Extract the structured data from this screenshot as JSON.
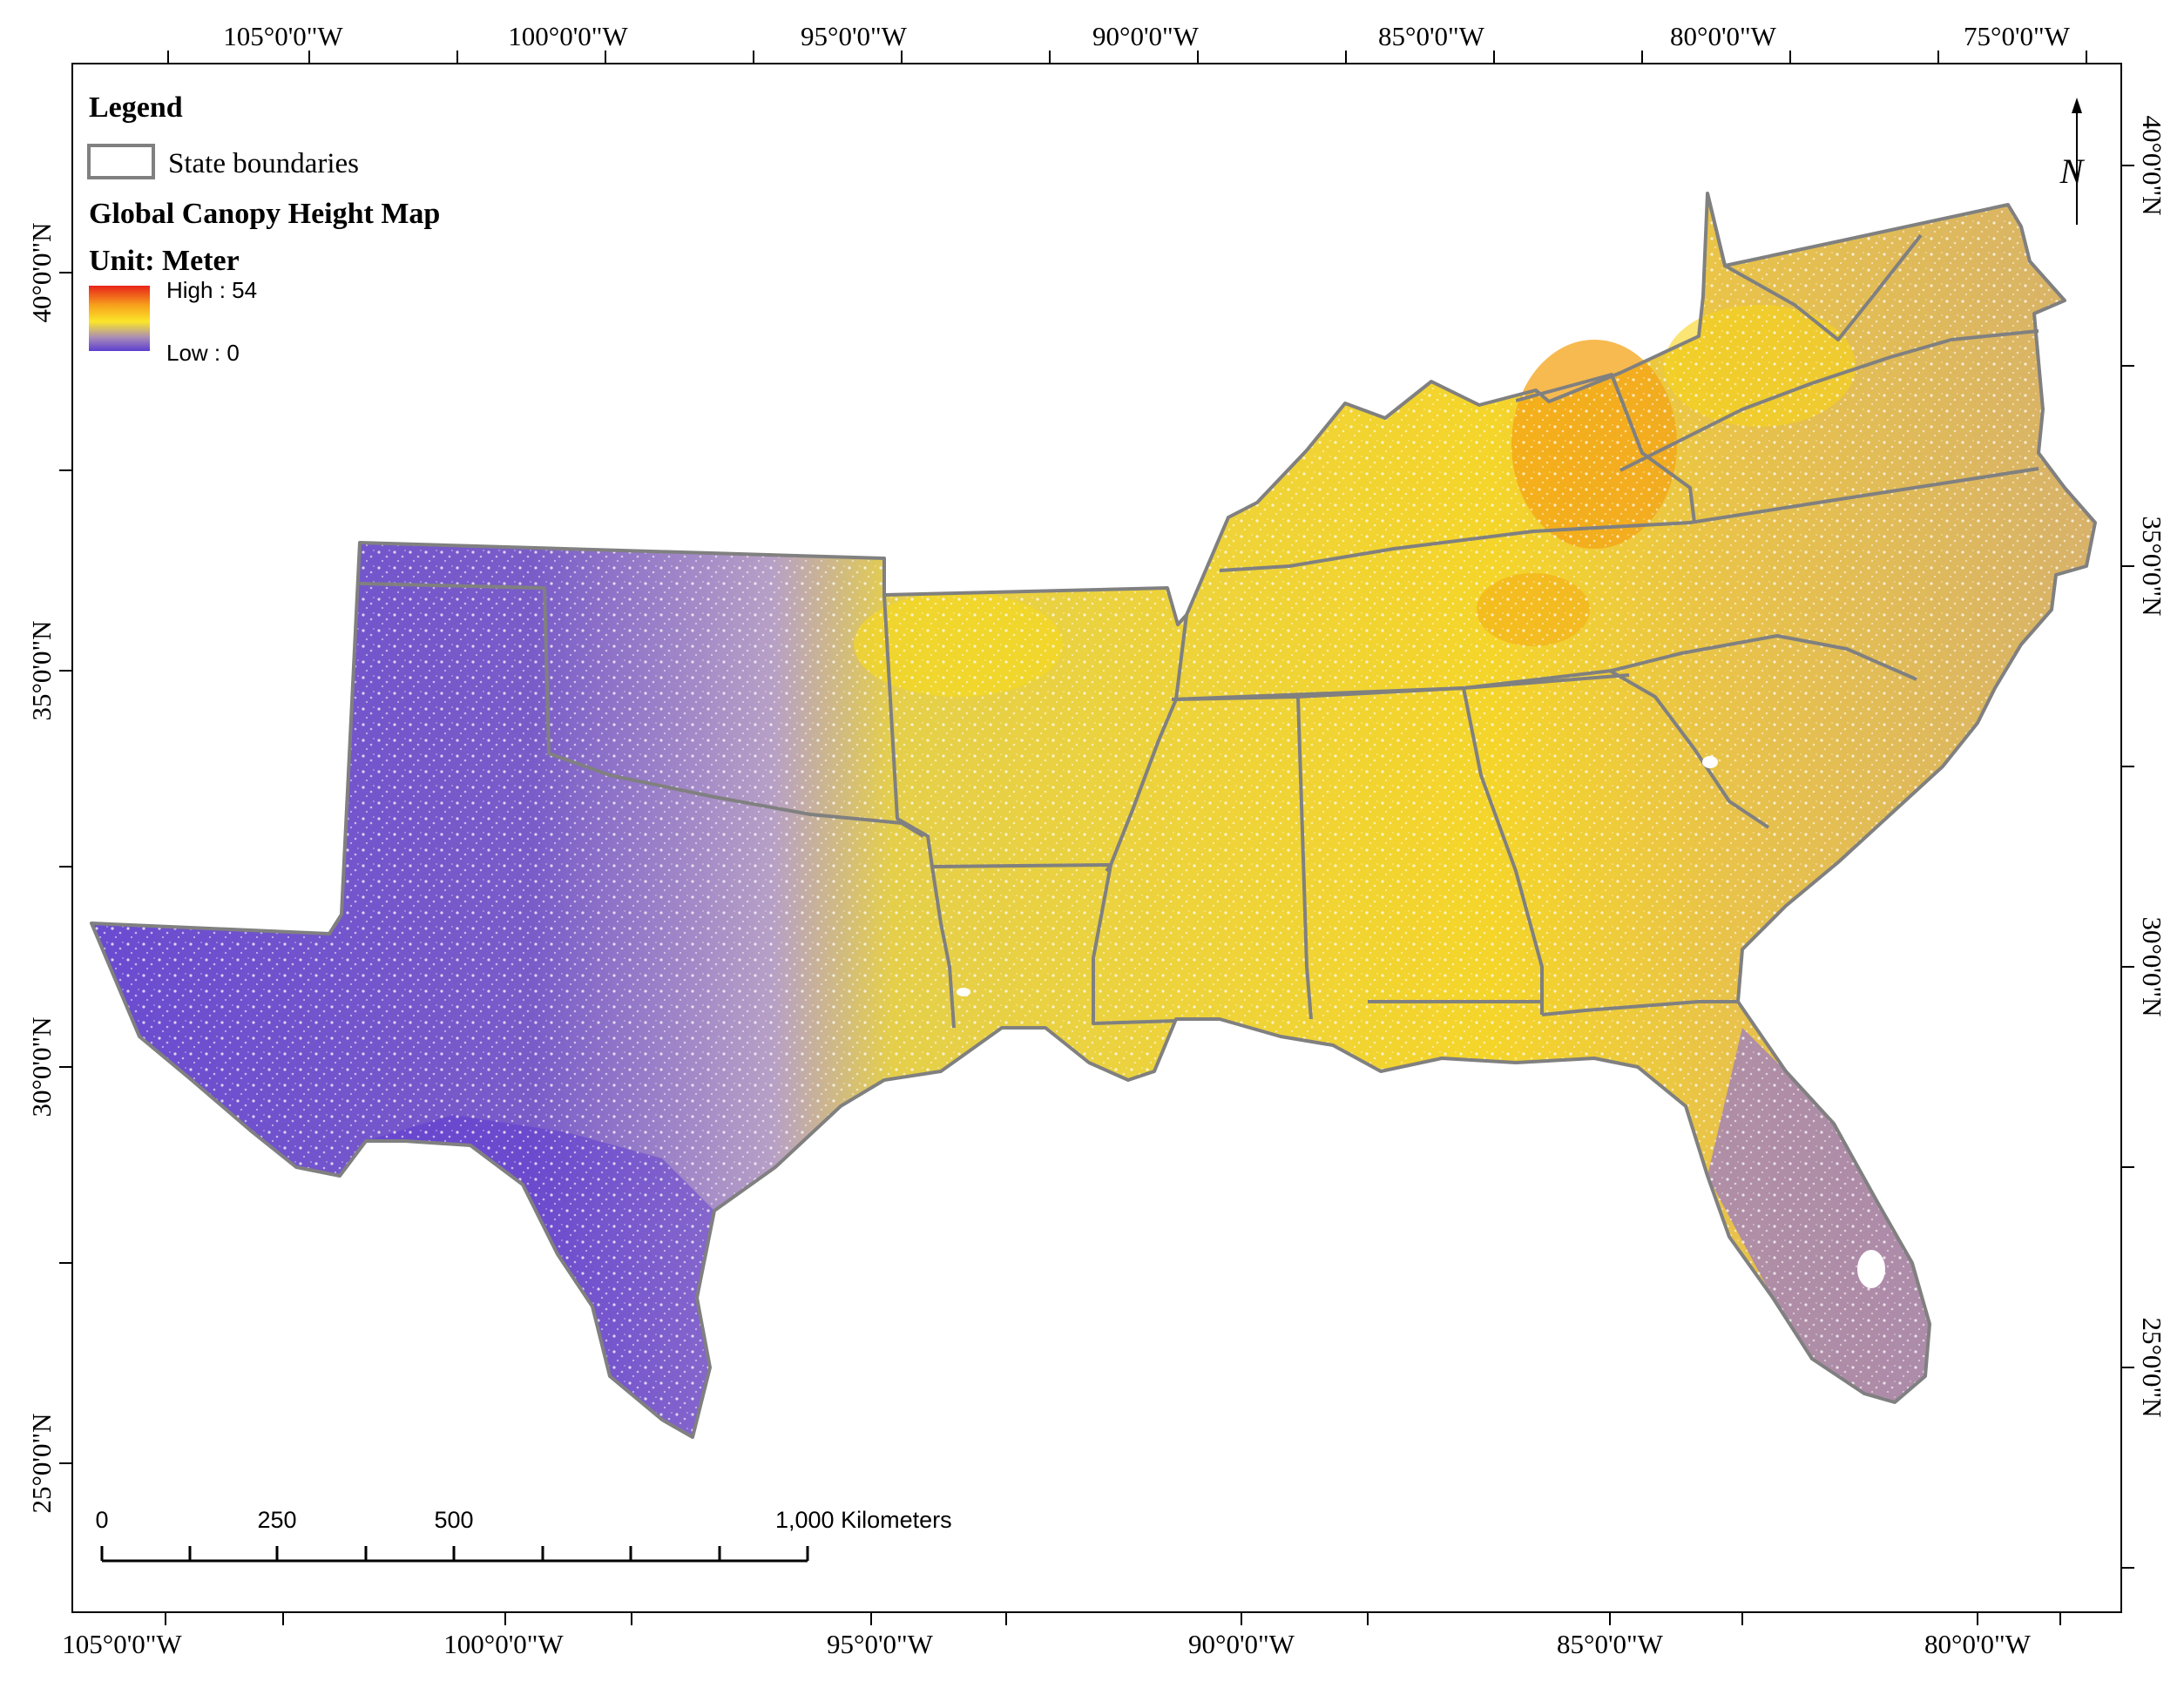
{
  "legend": {
    "heading": "Legend",
    "boundary_label": "State boundaries",
    "map_title": "Global Canopy Height Map",
    "unit_label": "Unit: Meter",
    "high_label": "High : 54",
    "low_label": "Low : 0",
    "colors": {
      "high": "#e8231b",
      "mid_high": "#f7a11b",
      "mid": "#fbe62a",
      "mid_low": "#a78ab8",
      "low": "#5b3fcf",
      "boundary": "#808080"
    }
  },
  "axes": {
    "top": [
      "105°0'0\"W",
      "100°0'0\"W",
      "95°0'0\"W",
      "90°0'0\"W",
      "85°0'0\"W",
      "80°0'0\"W",
      "75°0'0\"W"
    ],
    "bottom": [
      "105°0'0\"W",
      "100°0'0\"W",
      "95°0'0\"W",
      "90°0'0\"W",
      "85°0'0\"W",
      "80°0'0\"W"
    ],
    "left": [
      "40°0'0\"N",
      "35°0'0\"N",
      "30°0'0\"N",
      "25°0'0\"N"
    ],
    "right": [
      "40°0'0\"N",
      "35°0'0\"N",
      "30°0'0\"N",
      "25°0'0\"N"
    ]
  },
  "scale_bar": {
    "labels": [
      "0",
      "250",
      "500",
      "1,000 Kilometers"
    ],
    "values_km": [
      0,
      250,
      500,
      1000
    ]
  },
  "north_arrow": {
    "symbol": "N"
  }
}
